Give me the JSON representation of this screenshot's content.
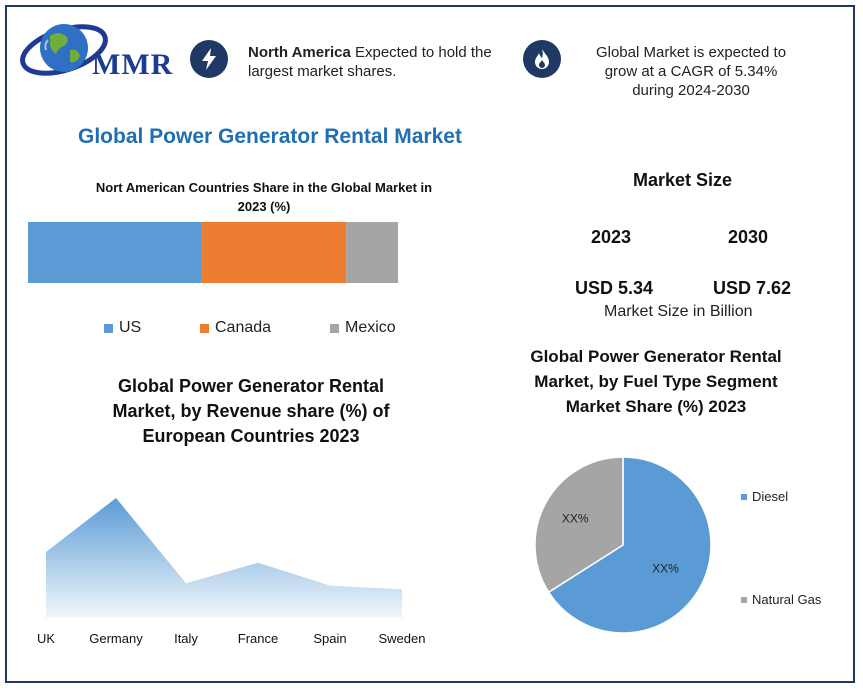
{
  "header": {
    "logo_text": "MMR",
    "highlight_bold": "North America",
    "highlight_rest": " Expected to hold the",
    "highlight_line2": "largest market shares.",
    "cagr_line1": "Global Market is expected to",
    "cagr_line2": "grow at a CAGR of 5.34%",
    "cagr_line3": "during 2024-2030",
    "icons": [
      "lightning-bolt-icon",
      "flame-icon"
    ]
  },
  "main_title": "Global Power Generator Rental Market",
  "market_size": {
    "title": "Market Size",
    "year_1": "2023",
    "year_2": "2030",
    "value_1": "USD 5.34",
    "value_2": "USD 7.62",
    "unit": "Market Size in Billion"
  },
  "chart_data": [
    {
      "type": "bar",
      "orientation": "horizontal-stacked",
      "title_line1": "Nort American Countries Share in the Global Market in",
      "title_line2": "2023  (%)",
      "series": [
        {
          "name": "US",
          "value": 47,
          "color": "#5b9bd5"
        },
        {
          "name": "Canada",
          "value": 39,
          "color": "#ed7d31"
        },
        {
          "name": "Mexico",
          "value": 14,
          "color": "#a5a5a5"
        }
      ],
      "legend": "bottom"
    },
    {
      "type": "area",
      "title_line1": "Global Power Generator Rental",
      "title_line2": "Market, by Revenue share (%) of",
      "title_line3": "European Countries 2023",
      "categories": [
        "UK",
        "Germany",
        "Italy",
        "France",
        "Spain",
        "Sweden"
      ],
      "values": [
        55,
        100,
        29,
        46,
        27,
        24
      ],
      "color": "#5b9bd5"
    },
    {
      "type": "pie",
      "title_line1": "Global Power Generator Rental",
      "title_line2": "Market, by  Fuel Type  Segment",
      "title_line3": "Market Share (%) 2023",
      "slices": [
        {
          "name": "Diesel",
          "value": 66,
          "label": "XX%",
          "color": "#5b9bd5"
        },
        {
          "name": "Natural Gas",
          "value": 34,
          "label": "XX%",
          "color": "#a5a5a5"
        }
      ],
      "legend": "right"
    }
  ]
}
